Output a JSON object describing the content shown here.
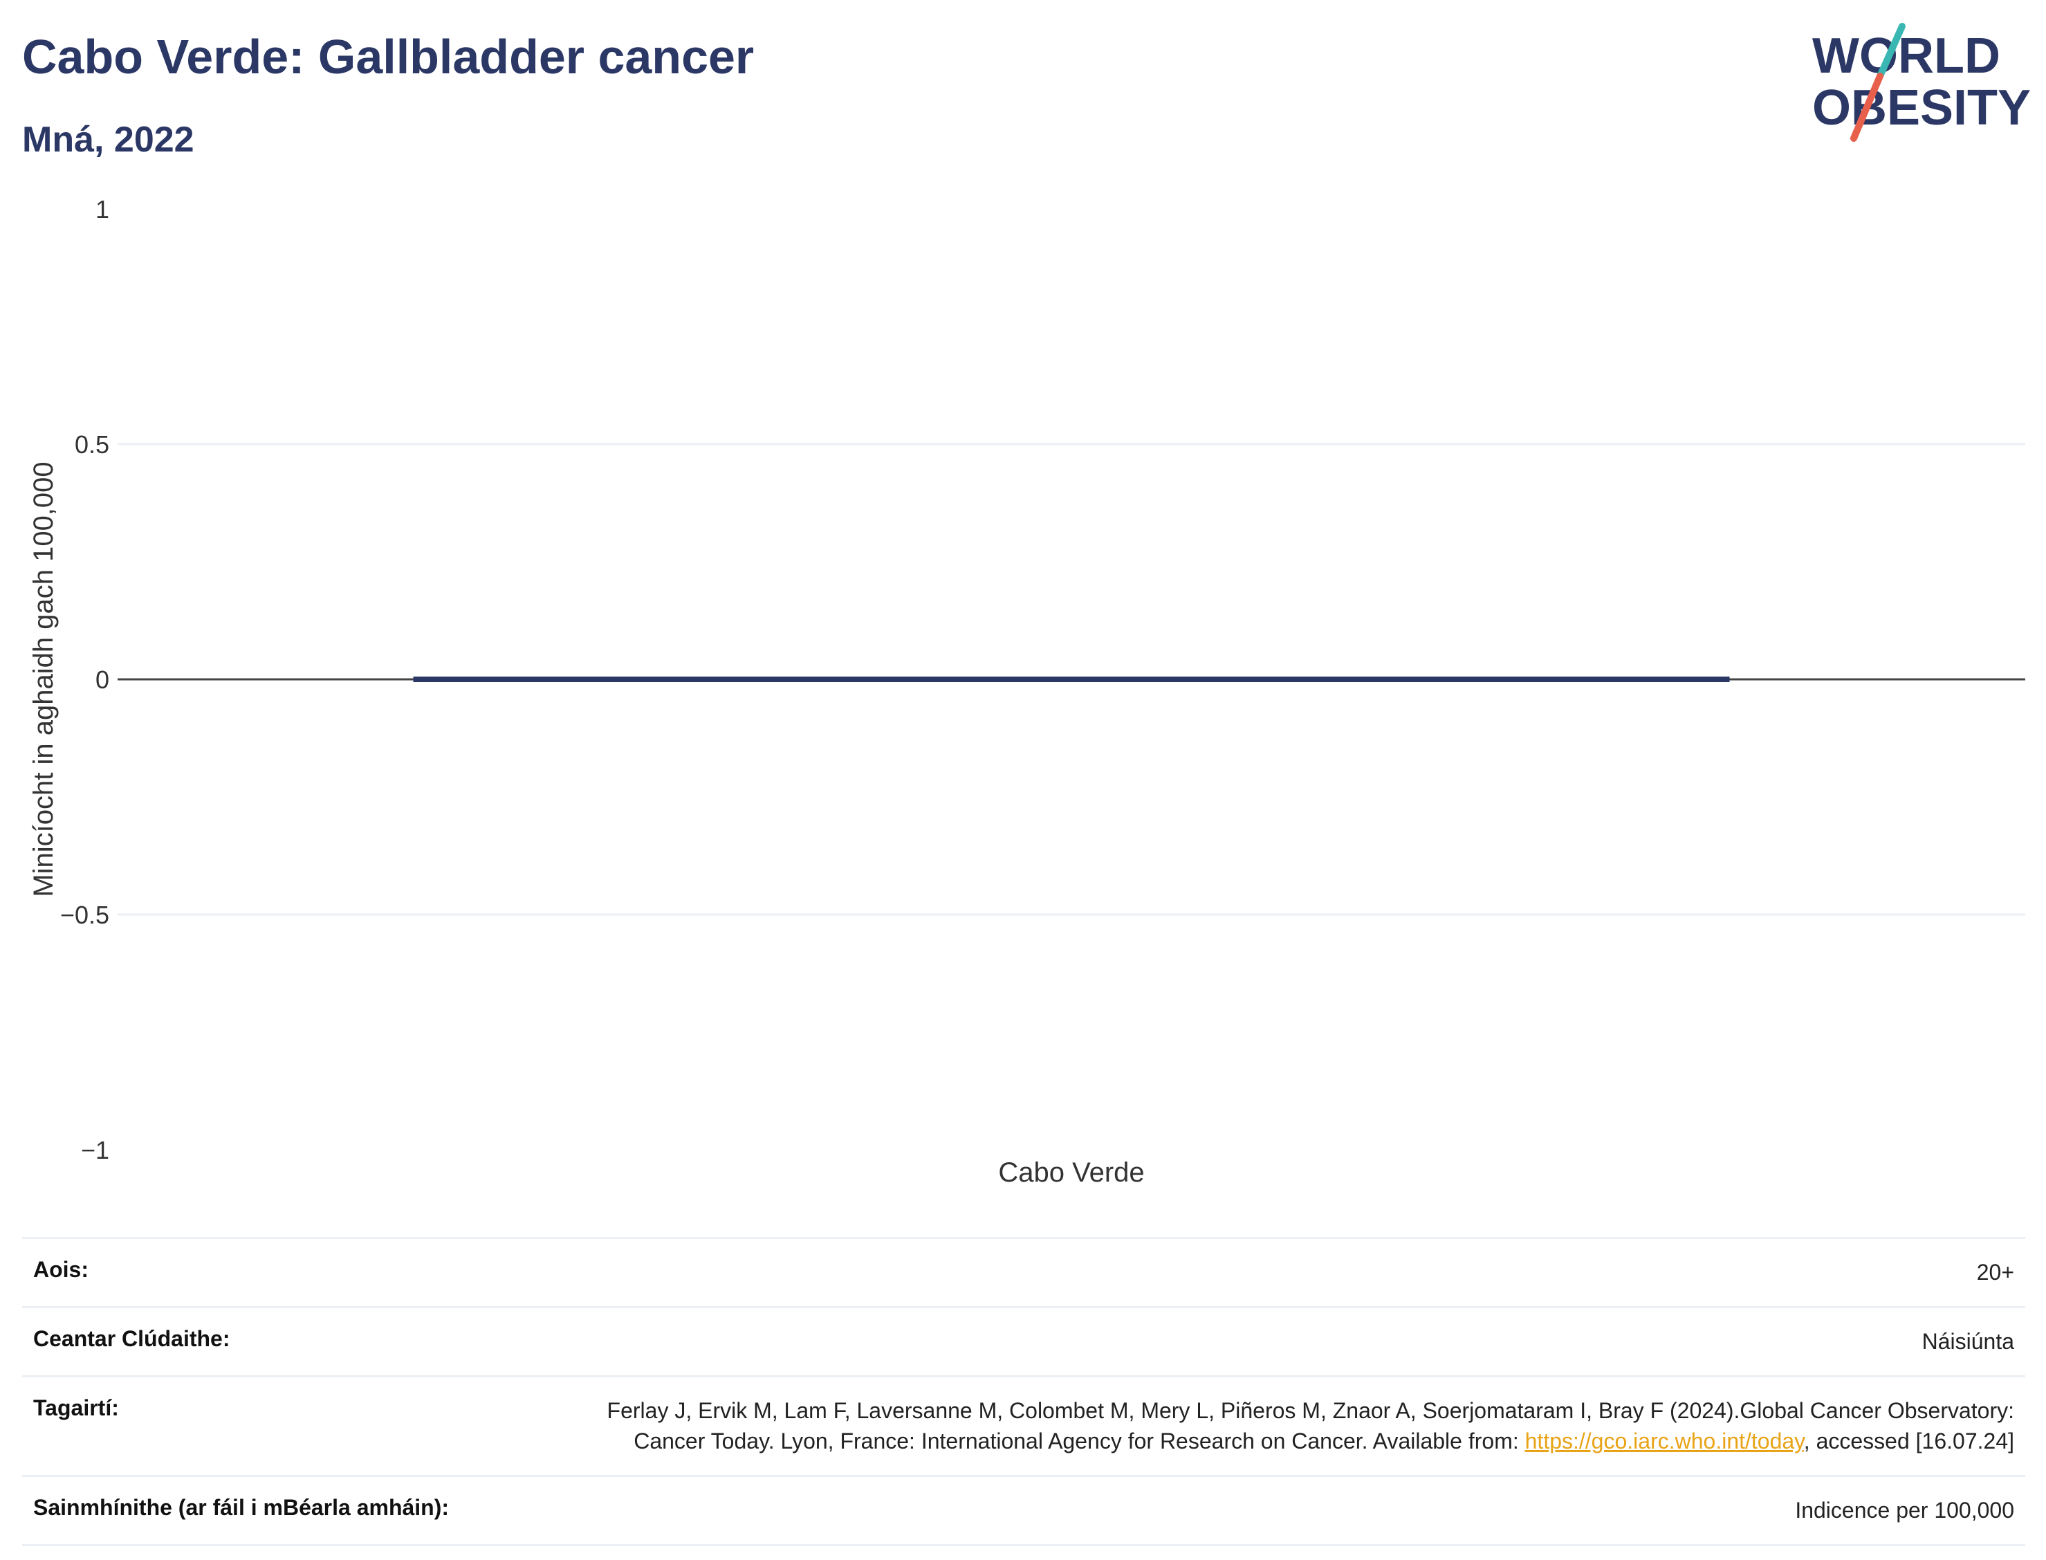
{
  "header": {
    "title": "Cabo Verde: Gallbladder cancer",
    "subtitle": "Mná, 2022"
  },
  "logo": {
    "line1": "WORLD",
    "line2": "OBESITY",
    "slash_color_top": "#3ab7b3",
    "slash_color_bottom": "#e8604c"
  },
  "colors": {
    "title": "#2b3765",
    "bar": "#2b3765",
    "link": "#e8a317",
    "grid": "#eceff4"
  },
  "chart_data": {
    "type": "bar",
    "categories": [
      "Cabo Verde"
    ],
    "series": [
      {
        "values": [
          0
        ]
      }
    ],
    "xlabel": "Cabo Verde",
    "ylabel": "Minicíocht in aghaidh gach 100,000",
    "ylim": [
      -1,
      1
    ],
    "yticks": [
      1,
      0.5,
      0,
      -0.5,
      -1
    ],
    "ytick_labels": [
      "1",
      "0.5",
      "0",
      "−0.5",
      "−1"
    ],
    "grid": true
  },
  "info": {
    "rows": [
      {
        "label": "Aois:",
        "value": "20+"
      },
      {
        "label": "Ceantar Clúdaithe:",
        "value": "Náisiúnta"
      },
      {
        "label": "Tagairtí:",
        "value_pre": "Ferlay J, Ervik M, Lam F, Laversanne M, Colombet M, Mery L, Piñeros M, Znaor A, Soerjomataram I, Bray F (2024).Global Cancer Observatory: Cancer Today. Lyon, France: International Agency for Research on Cancer. Available from: ",
        "link_text": "https://gco.iarc.who.int/today",
        "value_post": ", accessed [16.07.24]"
      },
      {
        "label": "Sainmhínithe (ar fáil i mBéarla amháin):",
        "value": "Indicence per 100,000"
      }
    ]
  }
}
